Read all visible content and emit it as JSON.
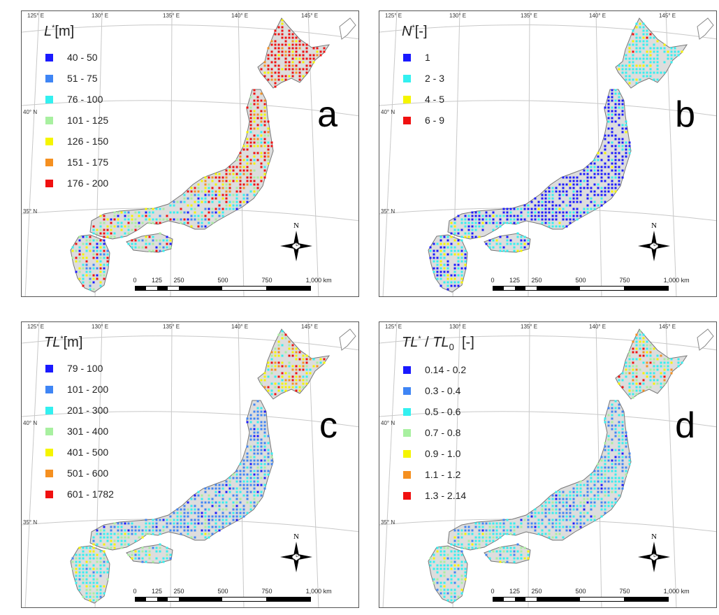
{
  "colors": {
    "blue": "#1a1aff",
    "mid_blue": "#3f85f5",
    "cyan": "#33f0f0",
    "light_green": "#a8f0a0",
    "yellow": "#f5f500",
    "orange": "#f59020",
    "red": "#f01010",
    "land": "#dddddd",
    "coast": "#777777"
  },
  "graticule": {
    "lon_labels": [
      "125° E",
      "130° E",
      "135° E",
      "140° E",
      "145° E"
    ],
    "lat_labels": [
      "40° N",
      "35° N"
    ]
  },
  "north_label": "N",
  "scale_bar": {
    "labels": [
      "0",
      "125",
      "250",
      "500",
      "750",
      "1,000 km"
    ]
  },
  "panels": [
    {
      "letter": "a",
      "title_main": "L",
      "title_sup": "*",
      "title_unit": "[m]",
      "legend": [
        {
          "label": "40 - 50",
          "color": "#1a1aff"
        },
        {
          "label": "51 - 75",
          "color": "#3f85f5"
        },
        {
          "label": "76 - 100",
          "color": "#33f0f0"
        },
        {
          "label": "101 - 125",
          "color": "#a8f0a0"
        },
        {
          "label": "126 - 150",
          "color": "#f5f500"
        },
        {
          "label": "151 - 175",
          "color": "#f59020"
        },
        {
          "label": "176 - 200",
          "color": "#f01010"
        }
      ]
    },
    {
      "letter": "b",
      "title_main": "N",
      "title_sup": "*",
      "title_unit": "[-]",
      "legend": [
        {
          "label": "1",
          "color": "#1a1aff"
        },
        {
          "label": "2 - 3",
          "color": "#33f0f0"
        },
        {
          "label": "4 - 5",
          "color": "#f5f500"
        },
        {
          "label": "6 - 9",
          "color": "#f01010"
        }
      ]
    },
    {
      "letter": "c",
      "title_main": "TL",
      "title_sup": "*",
      "title_unit": "[m]",
      "legend": [
        {
          "label": "79 - 100",
          "color": "#1a1aff"
        },
        {
          "label": "101 - 200",
          "color": "#3f85f5"
        },
        {
          "label": "201 - 300",
          "color": "#33f0f0"
        },
        {
          "label": "301 - 400",
          "color": "#a8f0a0"
        },
        {
          "label": "401 - 500",
          "color": "#f5f500"
        },
        {
          "label": "501 - 600",
          "color": "#f59020"
        },
        {
          "label": "601 - 1782",
          "color": "#f01010"
        }
      ]
    },
    {
      "letter": "d",
      "title_main": "TL",
      "title_sup": "*",
      "title_div": " / ",
      "title_main2": "TL",
      "title_sub": "0",
      "title_unit": "[-]",
      "legend": [
        {
          "label": "0.14 - 0.2",
          "color": "#1a1aff"
        },
        {
          "label": "0.3 - 0.4",
          "color": "#3f85f5"
        },
        {
          "label": "0.5 - 0.6",
          "color": "#33f0f0"
        },
        {
          "label": "0.7 - 0.8",
          "color": "#a8f0a0"
        },
        {
          "label": "0.9 - 1.0",
          "color": "#f5f500"
        },
        {
          "label": "1.1 - 1.2",
          "color": "#f59020"
        },
        {
          "label": "1.3 - 2.14",
          "color": "#f01010"
        }
      ]
    }
  ]
}
